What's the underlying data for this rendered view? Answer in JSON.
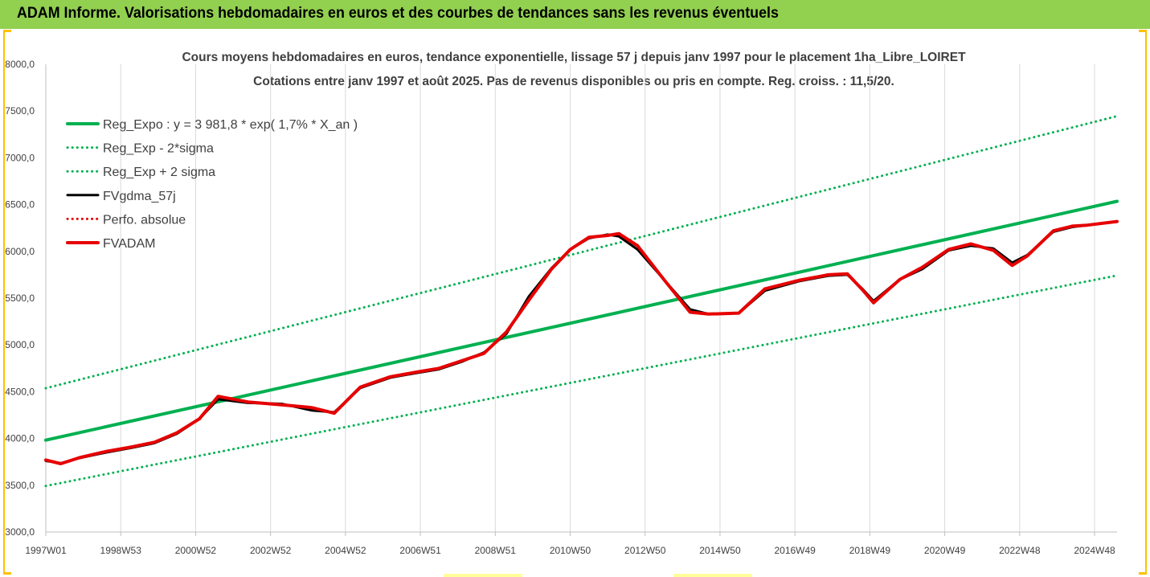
{
  "banner": {
    "title": "ADAM Informe. Valorisations hebdomadaires en euros et des courbes de tendances sans les revenus éventuels",
    "background": "#92d050"
  },
  "frame_color": "#ffc000",
  "chart_data": {
    "type": "line",
    "title": "Cours moyens hebdomadaires en euros, tendance exponentielle, lissage 57 j depuis janv 1997 pour le placement 1ha_Libre_LOIRET",
    "subtitle": "Cotations entre janv 1997 et août 2025. Pas de revenus disponibles ou pris en compte. Reg. croiss. : 11,5/20.",
    "xlabel": "",
    "ylabel": "",
    "ylim": [
      3000,
      8000
    ],
    "yticks": [
      "3000,0",
      "3500,0",
      "4000,0",
      "4500,0",
      "5000,0",
      "5500,0",
      "6000,0",
      "6500,0",
      "7000,0",
      "7500,0",
      "8000,0"
    ],
    "x_range": [
      1997.0,
      2025.6
    ],
    "xticks": [
      {
        "label": "1997W01",
        "x": 1997.0
      },
      {
        "label": "1998W53",
        "x": 1999.0
      },
      {
        "label": "2000W52",
        "x": 2001.0
      },
      {
        "label": "2002W52",
        "x": 2003.0
      },
      {
        "label": "2004W52",
        "x": 2005.0
      },
      {
        "label": "2006W51",
        "x": 2007.0
      },
      {
        "label": "2008W51",
        "x": 2009.0
      },
      {
        "label": "2010W50",
        "x": 2011.0
      },
      {
        "label": "2012W50",
        "x": 2013.0
      },
      {
        "label": "2014W50",
        "x": 2015.0
      },
      {
        "label": "2016W49",
        "x": 2017.0
      },
      {
        "label": "2018W49",
        "x": 2019.0
      },
      {
        "label": "2020W49",
        "x": 2021.0
      },
      {
        "label": "2022W48",
        "x": 2023.0
      },
      {
        "label": "2024W48",
        "x": 2025.0
      }
    ],
    "grid": "vertical",
    "legend_position": "top-left",
    "series": [
      {
        "name": "Reg_Expo : y = 3 981,8 * exp( 1,7% *  X_an )",
        "color": "#00b050",
        "style": "solid",
        "width": 4,
        "x": [
          1997.0,
          2025.6
        ],
        "y": [
          3982,
          6535
        ]
      },
      {
        "name": "Reg_Exp - 2*sigma",
        "color": "#00b050",
        "style": "dotted",
        "width": 3,
        "x": [
          1997.0,
          2025.6
        ],
        "y": [
          3492,
          5742
        ]
      },
      {
        "name": "Reg_Exp + 2 sigma",
        "color": "#00b050",
        "style": "dotted",
        "width": 3,
        "x": [
          1997.0,
          2025.6
        ],
        "y": [
          4537,
          7446
        ]
      },
      {
        "name": "FVgdma_57j",
        "color": "#000000",
        "style": "solid",
        "width": 3,
        "x": [
          1997.0,
          1997.4,
          1997.9,
          1998.6,
          1999.3,
          1999.9,
          2000.5,
          2001.1,
          2001.6,
          2002.4,
          2003.3,
          2004.1,
          2004.7,
          2005.4,
          2006.2,
          2006.9,
          2007.5,
          2008.1,
          2008.7,
          2009.3,
          2009.9,
          2010.5,
          2011.0,
          2011.5,
          2012.0,
          2012.3,
          2012.8,
          2013.5,
          2014.2,
          2014.7,
          2015.5,
          2016.2,
          2017.1,
          2017.9,
          2018.4,
          2018.8,
          2019.1,
          2019.8,
          2020.4,
          2021.1,
          2021.7,
          2022.3,
          2022.8,
          2023.2,
          2023.9,
          2024.4,
          2024.8,
          2025.6
        ],
        "y": [
          3760,
          3735,
          3790,
          3850,
          3900,
          3950,
          4050,
          4210,
          4420,
          4380,
          4370,
          4300,
          4280,
          4540,
          4650,
          4700,
          4740,
          4820,
          4920,
          5120,
          5520,
          5820,
          6020,
          6140,
          6180,
          6160,
          6020,
          5700,
          5380,
          5330,
          5340,
          5580,
          5680,
          5740,
          5750,
          5600,
          5470,
          5700,
          5810,
          6010,
          6060,
          6030,
          5880,
          5960,
          6210,
          6260,
          6280,
          6320
        ]
      },
      {
        "name": "Perfo. absolue",
        "color": "#e60000",
        "style": "dotted",
        "width": 3,
        "x": [],
        "y": []
      },
      {
        "name": "FVADAM",
        "color": "#e60000",
        "style": "solid",
        "width": 4,
        "x": [
          1997.0,
          1997.4,
          1997.9,
          1998.6,
          1999.3,
          1999.9,
          2000.5,
          2001.1,
          2001.6,
          2002.4,
          2003.3,
          2004.1,
          2004.7,
          2005.4,
          2006.2,
          2006.9,
          2007.5,
          2008.1,
          2008.7,
          2009.3,
          2009.9,
          2010.5,
          2011.0,
          2011.5,
          2012.0,
          2012.3,
          2012.8,
          2013.5,
          2014.2,
          2014.7,
          2015.5,
          2016.2,
          2017.1,
          2017.9,
          2018.4,
          2018.8,
          2019.1,
          2019.8,
          2020.4,
          2021.1,
          2021.7,
          2022.3,
          2022.8,
          2023.2,
          2023.9,
          2024.4,
          2024.8,
          2025.6
        ],
        "y": [
          3770,
          3730,
          3795,
          3860,
          3910,
          3960,
          4060,
          4210,
          4450,
          4390,
          4360,
          4330,
          4270,
          4550,
          4660,
          4710,
          4750,
          4830,
          4910,
          5140,
          5480,
          5810,
          6020,
          6150,
          6170,
          6190,
          6060,
          5700,
          5350,
          5330,
          5340,
          5600,
          5690,
          5750,
          5760,
          5590,
          5450,
          5700,
          5830,
          6020,
          6080,
          6010,
          5850,
          5950,
          6220,
          6270,
          6280,
          6320
        ]
      }
    ]
  }
}
